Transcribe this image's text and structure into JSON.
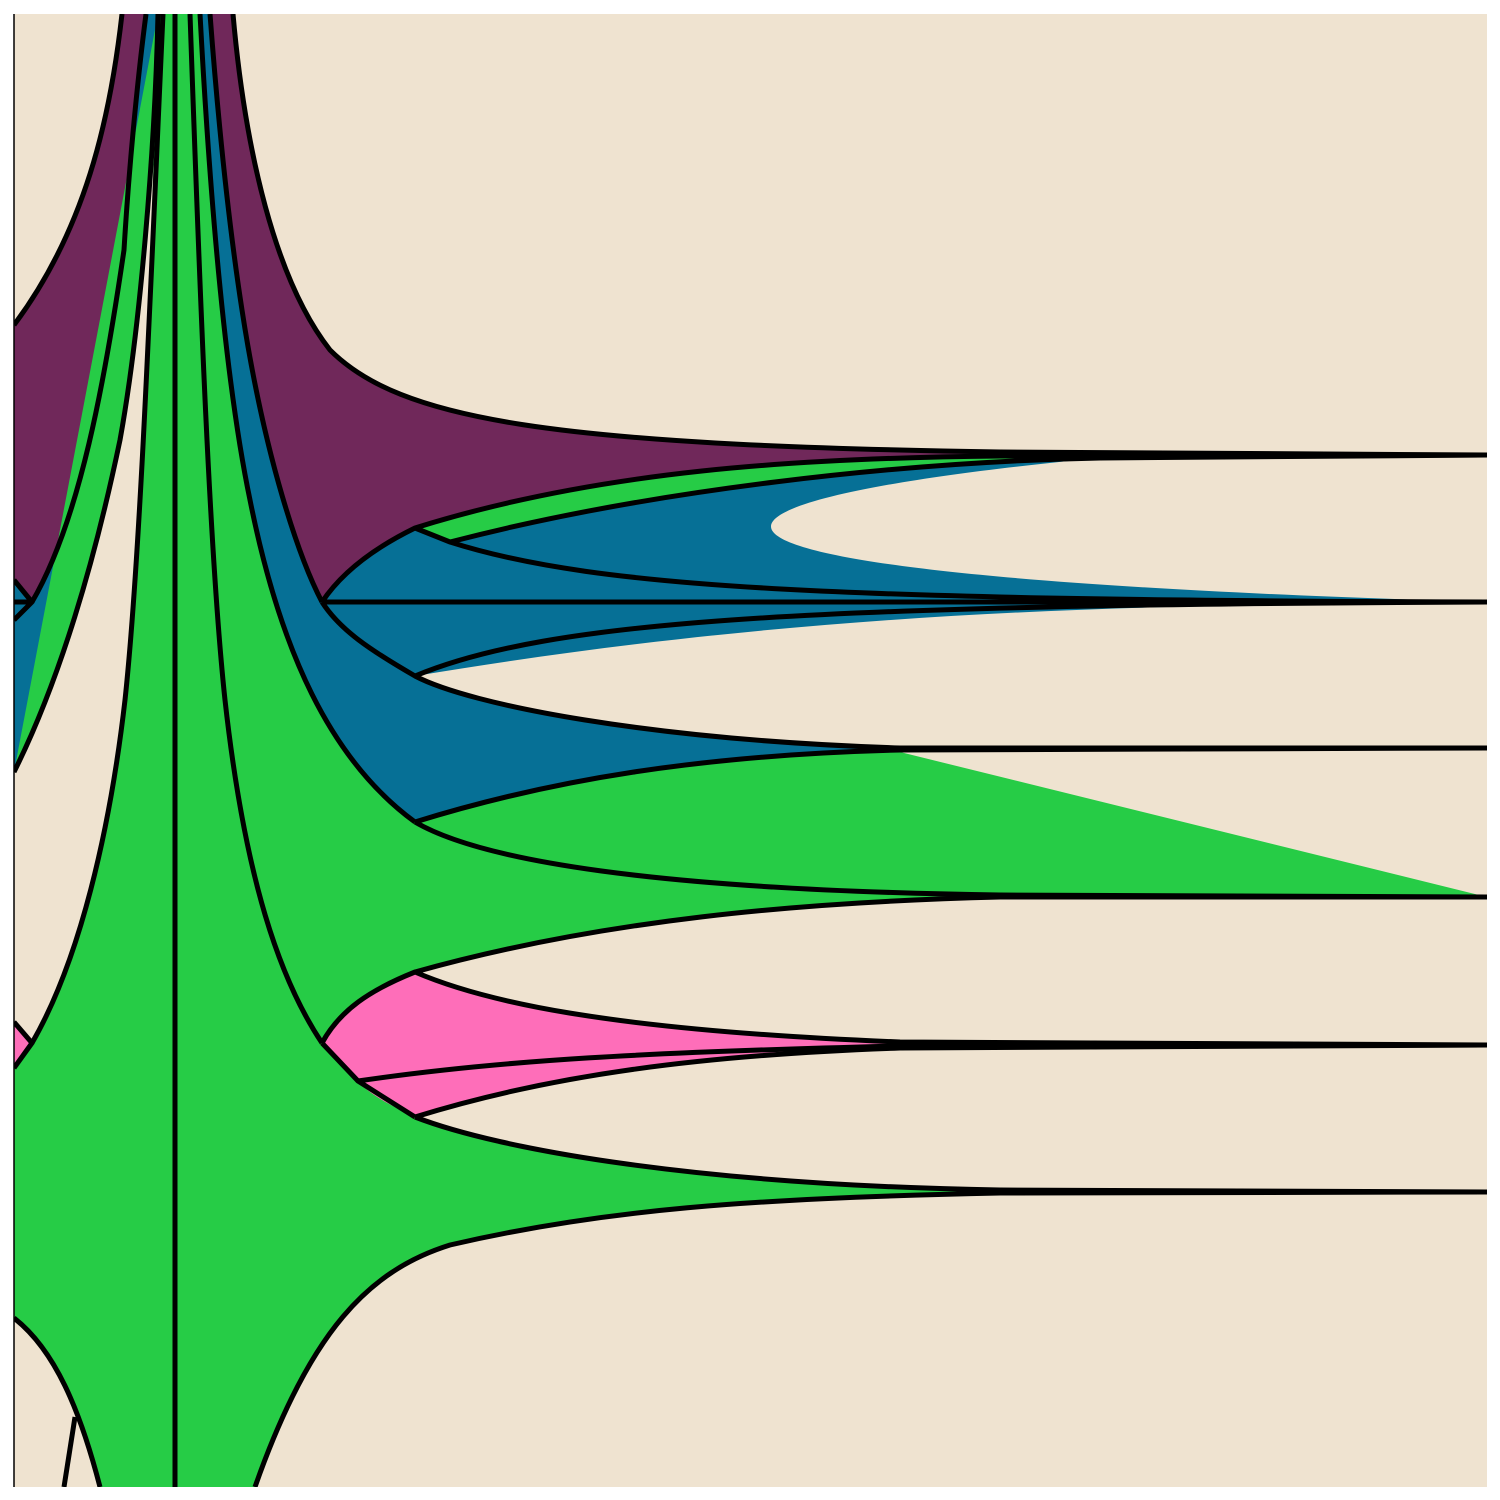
{
  "diagram": {
    "palette": {
      "background": "#EFE3D0",
      "stroke": "#000000",
      "regions": {
        "purple": "#70285A",
        "blue": "#067096",
        "green": "#26CC46",
        "pink": "#FE6EB9"
      }
    },
    "region_colors": [
      "purple",
      "blue",
      "green",
      "pink",
      "green",
      "blue",
      "green"
    ]
  }
}
